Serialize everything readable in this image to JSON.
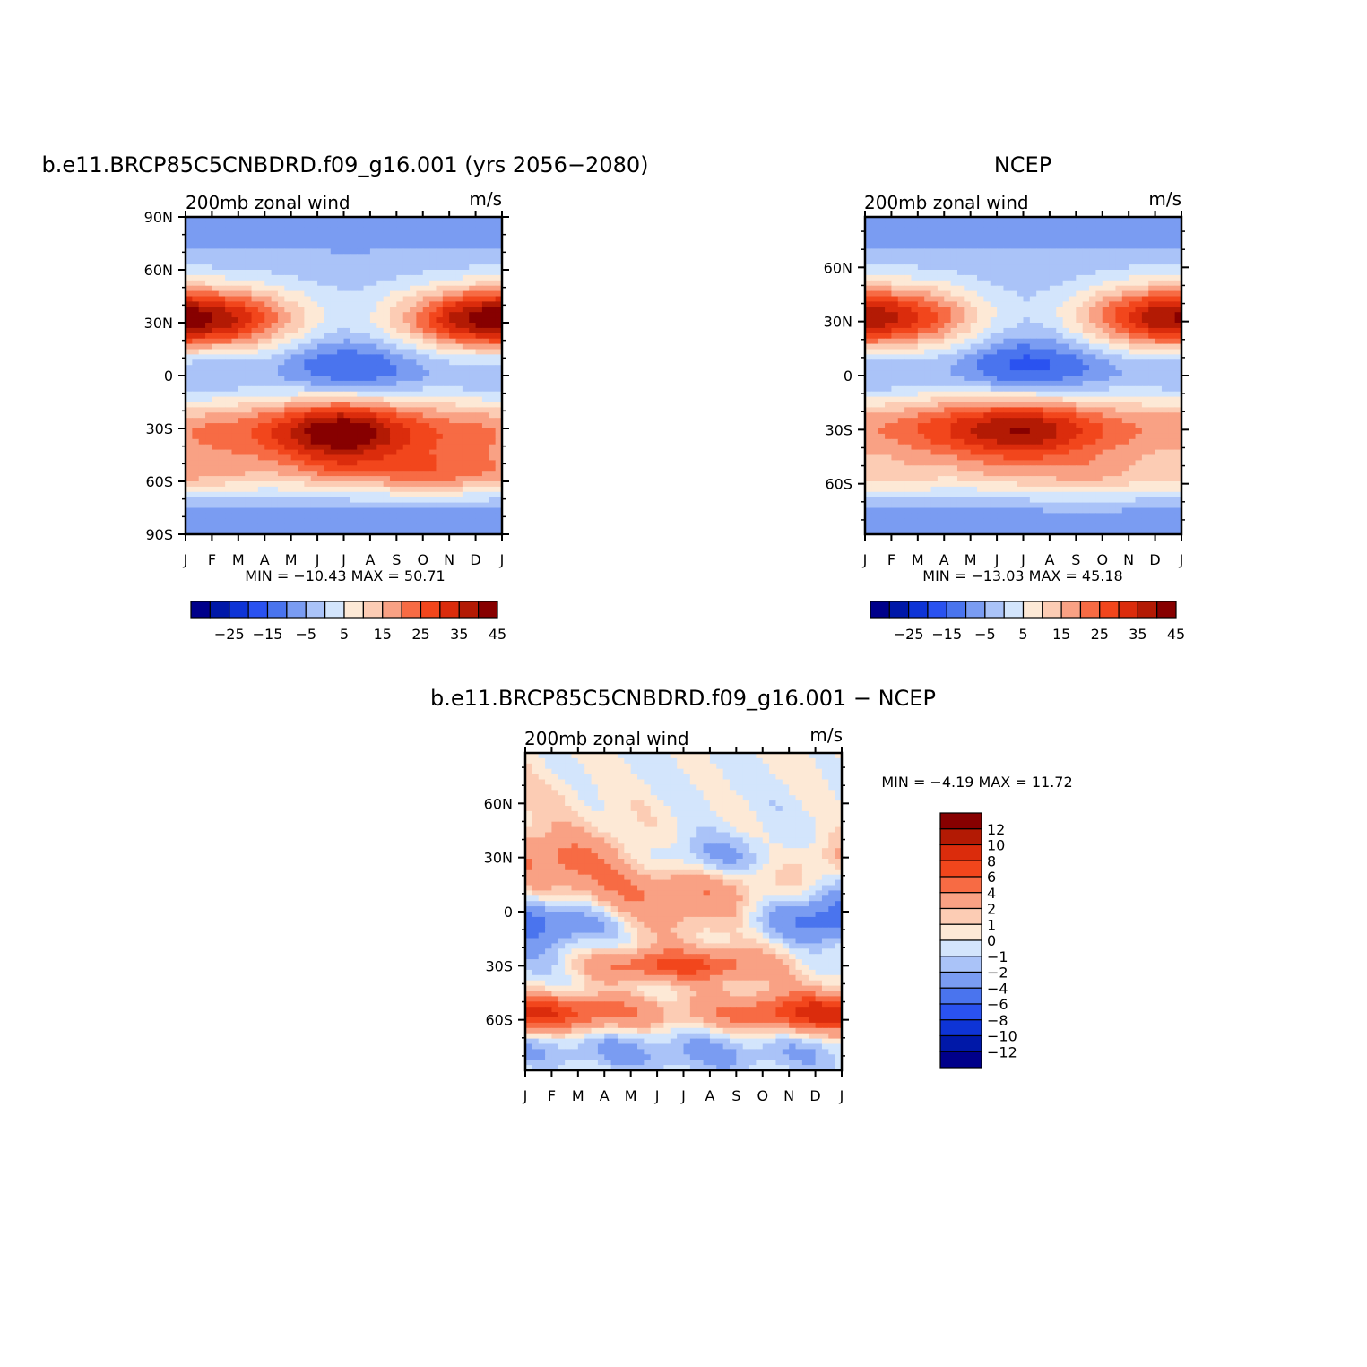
{
  "chart_data": [
    {
      "type": "heatmap",
      "title": "b.e11.BRCP85C5CNBDRD.f09_g16.001 (yrs 2056−2080)",
      "left_string": "200mb  zonal wind",
      "right_string": "m/s",
      "x_ticks": [
        "J",
        "F",
        "M",
        "A",
        "M",
        "J",
        "J",
        "A",
        "S",
        "O",
        "N",
        "D",
        "J"
      ],
      "y_ticks": [
        "90N",
        "60N",
        "30N",
        "0",
        "30S",
        "60S",
        "90S"
      ],
      "ylim": [
        -90,
        90
      ],
      "stats": "MIN =  −10.43  MAX =   50.71",
      "min": -10.43,
      "max": 50.71,
      "levels": [
        -30,
        -25,
        -20,
        -15,
        -10,
        -5,
        0,
        5,
        10,
        15,
        20,
        25,
        30,
        35,
        40,
        45
      ],
      "level_labels": [
        "−25",
        "−15",
        "−5",
        "5",
        "15",
        "25",
        "35",
        "45"
      ],
      "colors": [
        "#00008a",
        "#0018a8",
        "#0e34d6",
        "#2a52f0",
        "#4a74ee",
        "#7a9cf2",
        "#aac3f8",
        "#d3e5fc",
        "#fde9d6",
        "#fcccb4",
        "#f9a184",
        "#f76b44",
        "#f2461c",
        "#db2c0c",
        "#b31a04",
        "#870000"
      ],
      "features": [
        {
          "name": "nh_jet",
          "lat_center": 32,
          "lat_width": 13,
          "amplitude": [
            50,
            44,
            38,
            28,
            18,
            10,
            6,
            8,
            16,
            26,
            38,
            46
          ]
        },
        {
          "name": "sh_jet",
          "lat_center": -32,
          "lat_width": 14,
          "amplitude": [
            22,
            24,
            26,
            30,
            38,
            46,
            50,
            44,
            36,
            30,
            26,
            24
          ]
        },
        {
          "name": "sh_polar_jet",
          "lat_center": -56,
          "lat_width": 9,
          "amplitude": [
            16,
            14,
            12,
            10,
            10,
            12,
            14,
            16,
            18,
            20,
            20,
            18
          ]
        },
        {
          "name": "tropical_easterly",
          "lat_center": 4,
          "lat_width": 12,
          "amplitude": [
            -6,
            -6,
            -5,
            -4,
            -8,
            -12,
            -14,
            -13,
            -10,
            -6,
            -4,
            -5
          ]
        }
      ]
    },
    {
      "type": "heatmap",
      "title": "NCEP",
      "left_string": "200mb  zonal wind",
      "right_string": "m/s",
      "x_ticks": [
        "J",
        "F",
        "M",
        "A",
        "M",
        "J",
        "J",
        "A",
        "S",
        "O",
        "N",
        "D",
        "J"
      ],
      "y_ticks": [
        "60N",
        "30N",
        "0",
        "30S",
        "60S"
      ],
      "ylim": [
        -88,
        88
      ],
      "stats": "MIN =  −13.03  MAX =   45.18",
      "min": -13.03,
      "max": 45.18,
      "levels": [
        -30,
        -25,
        -20,
        -15,
        -10,
        -5,
        0,
        5,
        10,
        15,
        20,
        25,
        30,
        35,
        40,
        45
      ],
      "level_labels": [
        "−25",
        "−15",
        "−5",
        "5",
        "15",
        "25",
        "35",
        "45"
      ],
      "colors": [
        "#00008a",
        "#0018a8",
        "#0e34d6",
        "#2a52f0",
        "#4a74ee",
        "#7a9cf2",
        "#aac3f8",
        "#d3e5fc",
        "#fde9d6",
        "#fcccb4",
        "#f9a184",
        "#f76b44",
        "#f2461c",
        "#db2c0c",
        "#b31a04",
        "#870000"
      ],
      "features": [
        {
          "name": "nh_jet",
          "lat_center": 32,
          "lat_width": 13,
          "amplitude": [
            44,
            40,
            34,
            26,
            16,
            8,
            4,
            6,
            14,
            24,
            34,
            42
          ]
        },
        {
          "name": "sh_jet",
          "lat_center": -30,
          "lat_width": 14,
          "amplitude": [
            22,
            24,
            28,
            32,
            38,
            42,
            44,
            40,
            34,
            28,
            24,
            22
          ]
        },
        {
          "name": "sh_polar_jet",
          "lat_center": -56,
          "lat_width": 9,
          "amplitude": [
            10,
            10,
            10,
            8,
            8,
            10,
            10,
            12,
            14,
            14,
            12,
            10
          ]
        },
        {
          "name": "tropical_easterly",
          "lat_center": 4,
          "lat_width": 12,
          "amplitude": [
            -6,
            -6,
            -5,
            -5,
            -9,
            -14,
            -16,
            -15,
            -12,
            -8,
            -5,
            -5
          ]
        }
      ]
    },
    {
      "type": "heatmap",
      "title": "b.e11.BRCP85C5CNBDRD.f09_g16.001 − NCEP",
      "left_string": "200mb  zonal wind",
      "right_string": "m/s",
      "x_ticks": [
        "J",
        "F",
        "M",
        "A",
        "M",
        "J",
        "J",
        "A",
        "S",
        "O",
        "N",
        "D",
        "J"
      ],
      "y_ticks": [
        "60N",
        "30N",
        "0",
        "30S",
        "60S"
      ],
      "ylim": [
        -88,
        88
      ],
      "stats": "MIN =  −4.19  MAX =   11.72",
      "min": -4.19,
      "max": 11.72,
      "levels": [
        -14,
        -12,
        -10,
        -8,
        -6,
        -4,
        -2,
        -1,
        0,
        1,
        2,
        4,
        6,
        8,
        10,
        12
      ],
      "level_labels": [
        "12",
        "10",
        "8",
        "6",
        "4",
        "2",
        "1",
        "0",
        "−1",
        "−2",
        "−4",
        "−6",
        "−8",
        "−10",
        "−12"
      ],
      "colors": [
        "#00008a",
        "#0018a8",
        "#0e34d6",
        "#2a52f0",
        "#4a74ee",
        "#7a9cf2",
        "#aac3f8",
        "#d3e5fc",
        "#fde9d6",
        "#fcccb4",
        "#f9a184",
        "#f76b44",
        "#f2461c",
        "#db2c0c",
        "#b31a04",
        "#870000"
      ]
    }
  ]
}
